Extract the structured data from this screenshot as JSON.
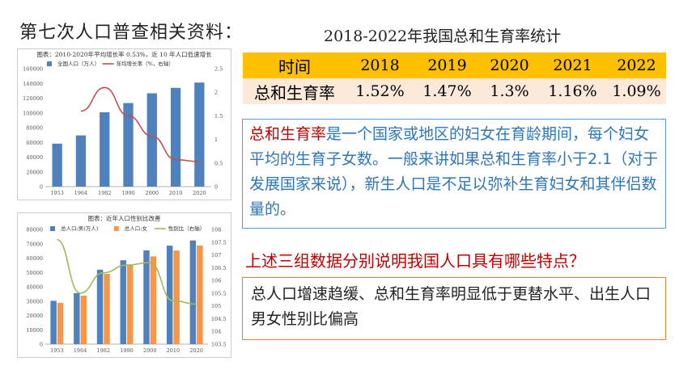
{
  "slide": {
    "heading": "第七次人口普查相关资料：",
    "table_title": "2018-2022年我国总和生育率统计",
    "table": {
      "header_label": "时间",
      "row_label": "总和生育率",
      "years": [
        "2018",
        "2019",
        "2020",
        "2021",
        "2022"
      ],
      "rates": [
        "1.52%",
        "1.47%",
        "1.3%",
        "1.16%",
        "1.09%"
      ]
    },
    "definition": {
      "term": "总和生育率",
      "text": "是一个国家或地区的妇女在育龄期间，每个妇女平均的生育子女数。一般来讲如果总和生育率小于2.1（对于发展国家来说），新生人口是不足以弥补生育妇女和其伴侣数量的。"
    },
    "question": "上述三组数据分别说明我国人口具有哪些特点？",
    "answer": "总人口增速趋缓、总和生育率明显低于更替水平、出生人口男女性别比偏高"
  },
  "chart_data": [
    {
      "type": "bar",
      "title": "图表：2010-2020年平均增长率 0.53%，近 10 年人口低速增长",
      "categories": [
        "1953",
        "1964",
        "1982",
        "1990",
        "2000",
        "2010",
        "2020"
      ],
      "series": [
        {
          "name": "全国人口（万人）",
          "type": "bar",
          "axis": "left",
          "color": "#4f81bd",
          "values": [
            58260,
            69458,
            100818,
            113368,
            126583,
            133972,
            141178
          ]
        },
        {
          "name": "年均增长率（%，右轴）",
          "type": "line",
          "axis": "right",
          "color": "#c0504d",
          "values": [
            null,
            1.6,
            2.1,
            1.5,
            1.07,
            0.57,
            0.53
          ]
        }
      ],
      "y_left": {
        "range": [
          0,
          160000
        ],
        "ticks": [
          "0",
          "20000",
          "40000",
          "60000",
          "80000",
          "100000",
          "120000",
          "140000",
          "160000"
        ]
      },
      "y_right": {
        "range": [
          0,
          2.5
        ],
        "ticks": [
          "0",
          "0.5",
          "1",
          "1.5",
          "2",
          "2.5"
        ]
      },
      "legend": "top",
      "grid": false
    },
    {
      "type": "bar",
      "title": "图表：近年人口性别比改善",
      "categories": [
        "1953",
        "1964",
        "1982",
        "1990",
        "2000",
        "2010",
        "2020"
      ],
      "series": [
        {
          "name": "总人口:男(万人)",
          "type": "bar",
          "axis": "left",
          "color": "#4f81bd",
          "values": [
            30200,
            35600,
            51900,
            58500,
            65400,
            68700,
            72300
          ]
        },
        {
          "name": "总人口:女",
          "type": "bar",
          "axis": "left",
          "color": "#f79646",
          "values": [
            28800,
            33800,
            49000,
            55000,
            61200,
            65300,
            68800
          ]
        },
        {
          "name": "性别比（右轴）",
          "type": "line",
          "axis": "right",
          "color": "#9bbb59",
          "values": [
            107.6,
            105.5,
            106.3,
            106.6,
            106.7,
            105.2,
            105.07
          ]
        }
      ],
      "y_left": {
        "range": [
          0,
          80000
        ],
        "ticks": [
          "0",
          "10000",
          "20000",
          "30000",
          "40000",
          "50000",
          "60000",
          "70000",
          "80000"
        ]
      },
      "y_right": {
        "range": [
          103.5,
          108
        ],
        "ticks": [
          "103.5",
          "104",
          "104.5",
          "105",
          "105.5",
          "106",
          "106.5",
          "107",
          "107.5",
          "108"
        ]
      },
      "legend": "top",
      "grid": false
    }
  ]
}
